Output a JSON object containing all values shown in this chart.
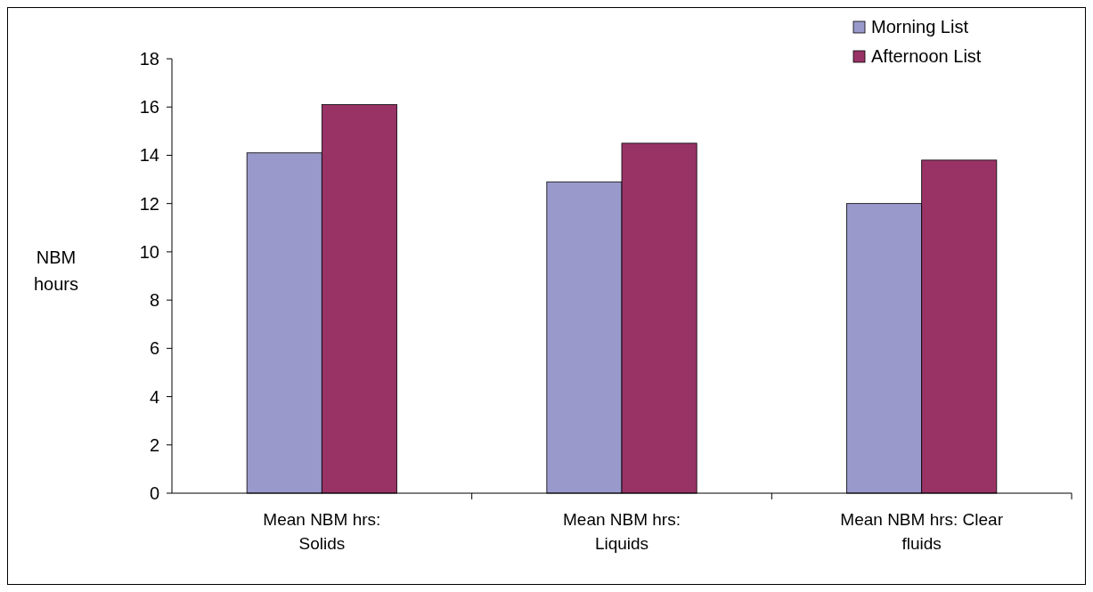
{
  "chart_data": {
    "type": "bar",
    "ylabel": "NBM hours",
    "categories": [
      "Mean NBM hrs: Solids",
      "Mean NBM hrs: Liquids",
      "Mean NBM hrs: Clear fluids"
    ],
    "series": [
      {
        "name": "Morning List",
        "color": "#9999cc",
        "values": [
          14.1,
          12.9,
          12.0
        ]
      },
      {
        "name": "Afternoon List",
        "color": "#993366",
        "values": [
          16.1,
          14.5,
          13.8
        ]
      }
    ],
    "ylim": [
      0,
      18
    ],
    "yticks": [
      0,
      2,
      4,
      6,
      8,
      10,
      12,
      14,
      16,
      18
    ],
    "legend": "top right",
    "grid": false
  }
}
